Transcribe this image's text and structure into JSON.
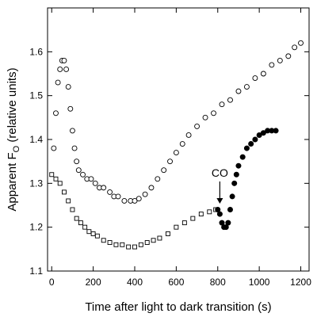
{
  "chart_data": {
    "type": "scatter",
    "xlabel": "Time after light to dark transition (s)",
    "ylabel_main": "Apparent F",
    "ylabel_sub": "O",
    "ylabel_suffix": " (relative units)",
    "xlim": [
      -20,
      1240
    ],
    "ylim": [
      1.1,
      1.7
    ],
    "x_ticks": [
      0,
      200,
      400,
      600,
      800,
      1000,
      1200
    ],
    "y_ticks": [
      1.1,
      1.2,
      1.3,
      1.4,
      1.5,
      1.6
    ],
    "y_tick_labels": [
      "1.1",
      "1.2",
      "1.3",
      "1.4",
      "1.5",
      "1.6"
    ],
    "grid": false,
    "annotations": [
      {
        "text": "CO",
        "x": 810,
        "y": 1.25,
        "arrow": true
      }
    ],
    "series": [
      {
        "marker": "open-circle",
        "points": [
          [
            10,
            1.38
          ],
          [
            20,
            1.46
          ],
          [
            30,
            1.53
          ],
          [
            40,
            1.56
          ],
          [
            50,
            1.58
          ],
          [
            60,
            1.58
          ],
          [
            70,
            1.56
          ],
          [
            80,
            1.52
          ],
          [
            90,
            1.47
          ],
          [
            100,
            1.42
          ],
          [
            110,
            1.38
          ],
          [
            120,
            1.35
          ],
          [
            130,
            1.33
          ],
          [
            150,
            1.32
          ],
          [
            170,
            1.31
          ],
          [
            190,
            1.31
          ],
          [
            210,
            1.3
          ],
          [
            230,
            1.29
          ],
          [
            250,
            1.29
          ],
          [
            280,
            1.28
          ],
          [
            300,
            1.27
          ],
          [
            320,
            1.27
          ],
          [
            350,
            1.26
          ],
          [
            380,
            1.26
          ],
          [
            400,
            1.26
          ],
          [
            420,
            1.265
          ],
          [
            450,
            1.275
          ],
          [
            480,
            1.29
          ],
          [
            510,
            1.31
          ],
          [
            540,
            1.33
          ],
          [
            570,
            1.35
          ],
          [
            600,
            1.37
          ],
          [
            630,
            1.39
          ],
          [
            660,
            1.41
          ],
          [
            700,
            1.43
          ],
          [
            740,
            1.45
          ],
          [
            780,
            1.46
          ],
          [
            820,
            1.48
          ],
          [
            860,
            1.49
          ],
          [
            900,
            1.51
          ],
          [
            940,
            1.52
          ],
          [
            980,
            1.54
          ],
          [
            1020,
            1.55
          ],
          [
            1060,
            1.57
          ],
          [
            1100,
            1.58
          ],
          [
            1140,
            1.59
          ],
          [
            1170,
            1.61
          ],
          [
            1200,
            1.62
          ]
        ]
      },
      {
        "marker": "open-square",
        "points": [
          [
            0,
            1.32
          ],
          [
            20,
            1.31
          ],
          [
            40,
            1.3
          ],
          [
            60,
            1.28
          ],
          [
            80,
            1.26
          ],
          [
            100,
            1.24
          ],
          [
            120,
            1.22
          ],
          [
            140,
            1.21
          ],
          [
            160,
            1.2
          ],
          [
            180,
            1.19
          ],
          [
            200,
            1.185
          ],
          [
            220,
            1.18
          ],
          [
            250,
            1.17
          ],
          [
            280,
            1.165
          ],
          [
            310,
            1.16
          ],
          [
            340,
            1.16
          ],
          [
            370,
            1.155
          ],
          [
            400,
            1.155
          ],
          [
            430,
            1.16
          ],
          [
            460,
            1.165
          ],
          [
            490,
            1.17
          ],
          [
            520,
            1.175
          ],
          [
            560,
            1.185
          ],
          [
            600,
            1.2
          ],
          [
            640,
            1.21
          ],
          [
            680,
            1.22
          ],
          [
            720,
            1.23
          ],
          [
            760,
            1.235
          ],
          [
            790,
            1.24
          ]
        ]
      },
      {
        "marker": "filled-circle",
        "points": [
          [
            800,
            1.24
          ],
          [
            810,
            1.23
          ],
          [
            820,
            1.21
          ],
          [
            830,
            1.2
          ],
          [
            840,
            1.2
          ],
          [
            850,
            1.21
          ],
          [
            860,
            1.24
          ],
          [
            870,
            1.27
          ],
          [
            880,
            1.3
          ],
          [
            890,
            1.32
          ],
          [
            900,
            1.34
          ],
          [
            920,
            1.36
          ],
          [
            940,
            1.38
          ],
          [
            960,
            1.39
          ],
          [
            980,
            1.4
          ],
          [
            1000,
            1.41
          ],
          [
            1020,
            1.415
          ],
          [
            1040,
            1.42
          ],
          [
            1060,
            1.42
          ],
          [
            1080,
            1.42
          ]
        ]
      }
    ]
  }
}
